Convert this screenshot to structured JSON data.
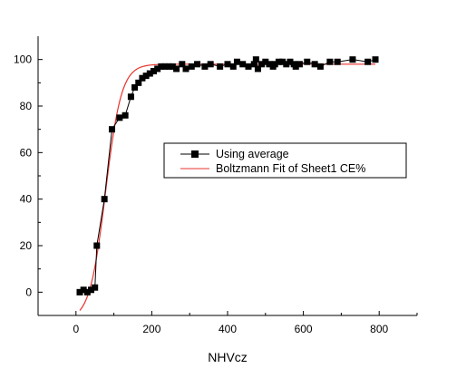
{
  "chart_data": {
    "type": "line",
    "title": "",
    "xlabel": "NHVcz",
    "ylabel": "",
    "xlim": [
      -100,
      900
    ],
    "ylim": [
      -10,
      110
    ],
    "x_ticks": [
      0,
      200,
      400,
      600,
      800
    ],
    "y_ticks": [
      0,
      20,
      40,
      60,
      80,
      100
    ],
    "grid": false,
    "legend_position": "center-right",
    "series": [
      {
        "name": "Using average",
        "style": "line-with-square-markers",
        "color": "#000000",
        "x": [
          10,
          20,
          30,
          40,
          50,
          55,
          75,
          95,
          115,
          130,
          145,
          155,
          165,
          175,
          185,
          195,
          205,
          215,
          225,
          235,
          245,
          255,
          265,
          280,
          290,
          305,
          320,
          340,
          355,
          380,
          400,
          415,
          425,
          440,
          455,
          470,
          475,
          480,
          490,
          500,
          510,
          520,
          525,
          535,
          545,
          555,
          565,
          575,
          580,
          590,
          610,
          630,
          645,
          670,
          690,
          730,
          770,
          790
        ],
        "y": [
          0,
          1,
          0,
          1,
          2,
          20,
          40,
          70,
          75,
          76,
          84,
          88,
          90,
          92,
          93,
          94,
          95,
          96,
          97,
          97,
          97,
          97,
          96,
          98,
          96,
          97,
          98,
          97,
          98,
          97,
          98,
          97,
          99,
          98,
          97,
          98,
          100,
          96,
          98,
          99,
          98,
          97,
          98,
          99,
          99,
          98,
          99,
          98,
          97,
          98,
          99,
          98,
          97,
          99,
          99,
          100,
          99,
          100
        ]
      },
      {
        "name": "Boltzmann Fit of Sheet1 CE%",
        "style": "line",
        "color": "#e8322d",
        "fit": {
          "A1": -12,
          "A2": 98,
          "x0": 78,
          "dx": 21
        },
        "x_range": [
          10,
          790
        ]
      }
    ]
  }
}
